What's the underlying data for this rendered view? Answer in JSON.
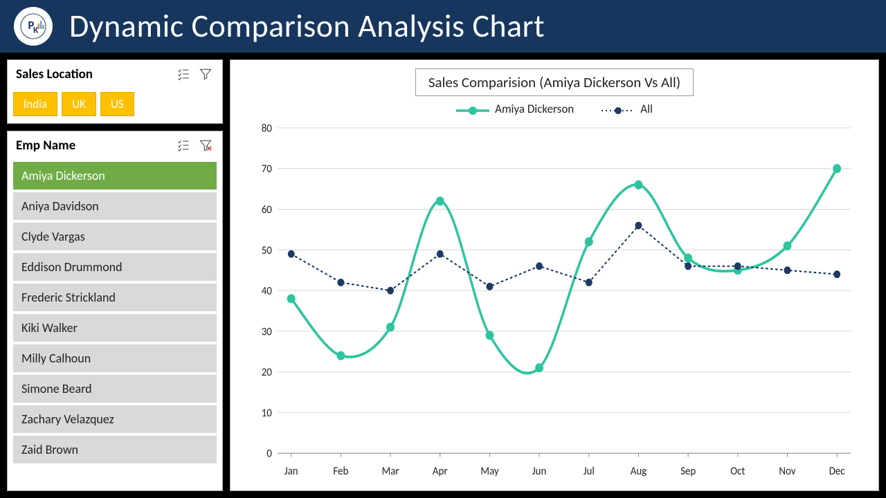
{
  "header": {
    "title": "Dynamic Comparison Analysis Chart",
    "bg": "#17365d",
    "title_color": "#ffffff"
  },
  "location_slicer": {
    "title": "Sales Location",
    "items": [
      "India",
      "UK",
      "US"
    ],
    "chip_bg": "#ffc000",
    "chip_color": "#ffffff"
  },
  "emp_slicer": {
    "title": "Emp Name",
    "selected_index": 0,
    "items": [
      "Amiya Dickerson",
      "Aniya Davidson",
      "Clyde Vargas",
      "Eddison Drummond",
      "Frederic Strickland",
      "Kiki Walker",
      "Milly Calhoun",
      "Simone Beard",
      "Zachary Velazquez",
      "Zaid Brown"
    ],
    "item_bg": "#d9d9d9",
    "item_color": "#222222",
    "selected_bg": "#6fac46",
    "selected_color": "#ffffff"
  },
  "chart": {
    "type": "line",
    "title": "Sales Comparision (Amiya Dickerson Vs All)",
    "categories": [
      "Jan",
      "Feb",
      "Mar",
      "Apr",
      "May",
      "Jun",
      "Jul",
      "Aug",
      "Sep",
      "Oct",
      "Nov",
      "Dec"
    ],
    "series": [
      {
        "name": "Amiya Dickerson",
        "values": [
          38,
          24,
          31,
          62,
          29,
          21,
          52,
          66,
          48,
          45,
          51,
          70
        ],
        "color": "#2ec4a0",
        "line_width": 3.5,
        "marker": "circle",
        "marker_size": 6,
        "dash": "solid",
        "smooth": true
      },
      {
        "name": "All",
        "values": [
          49,
          42,
          40,
          49,
          41,
          46,
          42,
          56,
          46,
          46,
          45,
          44
        ],
        "color": "#1f3864",
        "line_width": 2,
        "marker": "circle",
        "marker_size": 5,
        "dash": "dotted",
        "smooth": false
      }
    ],
    "ylim": [
      0,
      80
    ],
    "ytick_step": 10,
    "grid_color": "#d9d9d9",
    "background_color": "#ffffff",
    "label_fontsize": 15,
    "title_fontsize": 21,
    "legend_fontsize": 17
  }
}
